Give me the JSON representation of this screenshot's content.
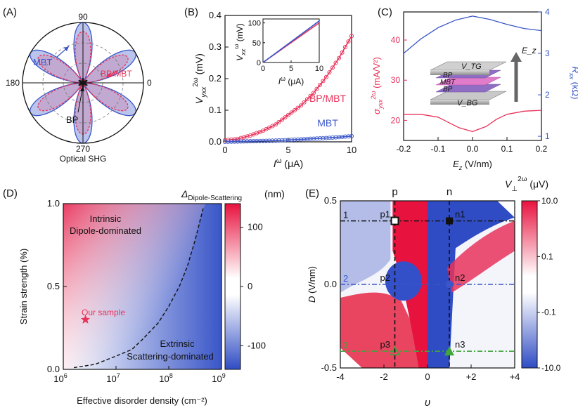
{
  "panel_labels": [
    "(A)",
    "(B)",
    "(C)",
    "(D)",
    "(E)"
  ],
  "colors": {
    "red": "#e8325a",
    "blue": "#3a56c8",
    "green": "#3fa63a",
    "dark": "#1a1a1a"
  },
  "chart_data": [
    {
      "panel": "A",
      "type": "polar",
      "title": "Optical SHG",
      "angle_labels": [
        "90",
        "0",
        "270",
        "180"
      ],
      "series": [
        {
          "name": "MBT",
          "color": "#3a56c8",
          "petals_deg": [
            30,
            90,
            150,
            210,
            270,
            330
          ],
          "relative_amplitude": 1.0
        },
        {
          "name": "BP/MBT",
          "color": "#e8325a",
          "petals_deg": [
            30,
            90,
            150,
            210,
            270,
            330
          ],
          "relative_amplitude": 0.85
        },
        {
          "name": "BP",
          "color": "#1a1a1a",
          "petals_deg": [
            30,
            90,
            150,
            210,
            270,
            330
          ],
          "relative_amplitude": 0.08
        }
      ]
    },
    {
      "panel": "B",
      "type": "line",
      "xlabel": "I^ω (μA)",
      "ylabel": "V_yxx^2ω (mV)",
      "xlim": [
        0,
        10
      ],
      "ylim": [
        0,
        0.4
      ],
      "xticks": [
        "0",
        "5",
        "10"
      ],
      "yticks": [
        "0.0",
        "0.1",
        "0.2",
        "0.3",
        "0.4"
      ],
      "series": [
        {
          "name": "BP/MBT",
          "color": "#e8325a",
          "x": [
            0,
            1,
            2,
            3,
            4,
            5,
            6,
            7,
            8,
            9,
            10
          ],
          "y": [
            0.005,
            0.009,
            0.02,
            0.035,
            0.055,
            0.085,
            0.115,
            0.155,
            0.205,
            0.265,
            0.335
          ]
        },
        {
          "name": "MBT",
          "color": "#3a56c8",
          "x": [
            0,
            1,
            2,
            3,
            4,
            5,
            6,
            7,
            8,
            9,
            10
          ],
          "y": [
            0.0,
            0.001,
            0.002,
            0.003,
            0.004,
            0.006,
            0.008,
            0.01,
            0.012,
            0.015,
            0.018
          ]
        }
      ],
      "inset": {
        "xlabel": "I^ω (μA)",
        "ylabel": "V_xx^ω (mV)",
        "xlim": [
          0,
          10
        ],
        "ylim": [
          0,
          110
        ],
        "xticks": [
          "0",
          "5",
          "10"
        ],
        "yticks": [
          "0",
          "50",
          "100"
        ],
        "series": [
          {
            "name": "BP/MBT",
            "color": "#e8325a",
            "x": [
              0,
              10
            ],
            "y": [
              0,
              100
            ]
          },
          {
            "name": "MBT",
            "color": "#3a56c8",
            "x": [
              0,
              10
            ],
            "y": [
              0,
              105
            ]
          }
        ]
      }
    },
    {
      "panel": "C",
      "type": "line",
      "xlabel": "E_z (V/nm)",
      "ylabel_left": "σ_yxx^2ω (mA/V²)",
      "ylabel_right": "R_xx (kΩ)",
      "xlim": [
        -0.2,
        0.2
      ],
      "ylim_left": [
        15,
        47
      ],
      "ylim_right": [
        0.9,
        4
      ],
      "xticks": [
        "-0.2",
        "-0.1",
        "0.0",
        "0.1",
        "0.2"
      ],
      "yticks_left": [
        "20",
        "30",
        "40"
      ],
      "yticks_right": [
        "1",
        "2",
        "3",
        "4"
      ],
      "series": [
        {
          "name": "σ",
          "axis": "left",
          "color": "#e8325a",
          "x": [
            -0.2,
            -0.15,
            -0.1,
            -0.07,
            -0.04,
            0.0,
            0.04,
            0.07,
            0.1,
            0.15,
            0.2
          ],
          "y": [
            21.5,
            21.5,
            20.8,
            19.5,
            18.2,
            17.2,
            18.5,
            20.3,
            21.5,
            22.3,
            22.5
          ]
        },
        {
          "name": "R_xx",
          "axis": "right",
          "color": "#3a56c8",
          "x": [
            -0.2,
            -0.15,
            -0.1,
            -0.05,
            0.0,
            0.05,
            0.1,
            0.15,
            0.2
          ],
          "y": [
            3.0,
            3.35,
            3.62,
            3.8,
            3.9,
            3.82,
            3.7,
            3.6,
            3.55
          ]
        }
      ],
      "inset_labels": [
        "V_TG",
        "BP",
        "MBT",
        "BP",
        "V_BG",
        "E_z"
      ]
    },
    {
      "panel": "D",
      "type": "heatmap",
      "xlabel": "Effective disorder density (cm⁻²)",
      "ylabel": "Strain strength (%)",
      "xscale": "log",
      "xlim_exp": [
        6,
        9
      ],
      "ylim": [
        0,
        1.0
      ],
      "xticks": [
        "10",
        "10",
        "10",
        "10"
      ],
      "xtick_exponents": [
        "6",
        "7",
        "8",
        "9"
      ],
      "yticks": [
        "0.0",
        "0.5",
        "1.0"
      ],
      "colorbar": {
        "title": "Δ",
        "title_sub": "Dipole-Scattering",
        "unit": "(nm)",
        "ticks": [
          "100",
          "0",
          "-100"
        ],
        "range": [
          -140,
          140
        ]
      },
      "boundary": {
        "log_x": [
          6.2,
          6.6,
          7.0,
          7.3,
          7.5,
          7.8,
          8.0,
          8.2,
          8.35,
          8.5,
          8.65
        ],
        "y": [
          0.01,
          0.03,
          0.08,
          0.12,
          0.18,
          0.28,
          0.38,
          0.5,
          0.62,
          0.78,
          0.97
        ]
      },
      "annotations": [
        "Intrinsic",
        "Dipole-dominated",
        "Extrinsic",
        "Scattering-dominated",
        "Our sample"
      ],
      "our_sample": {
        "log_x": 6.42,
        "y": 0.3
      }
    },
    {
      "panel": "E",
      "type": "heatmap",
      "xlabel": "υ",
      "ylabel": "D (V/nm)",
      "xlim": [
        -4,
        4
      ],
      "ylim": [
        -0.5,
        0.5
      ],
      "xticks": [
        "-4",
        "-2",
        "0",
        "+2",
        "+4"
      ],
      "yticks": [
        "0.5",
        "0.0",
        "-0.5"
      ],
      "colorbar": {
        "title": "V",
        "title_sub": "⊥",
        "title_sup": "2ω",
        "unit": "(μV)",
        "ticks": [
          "10.0",
          "0.1",
          "-0.1",
          "-10.0"
        ]
      },
      "top_labels": [
        "p",
        "n"
      ],
      "cuts": [
        {
          "label": "1",
          "D": 0.38,
          "color": "#1a1a1a"
        },
        {
          "label": "2",
          "D": 0.0,
          "color": "#3a56c8"
        },
        {
          "label": "3",
          "D": -0.4,
          "color": "#3fa63a"
        }
      ],
      "vertical_cuts": [
        {
          "label": "p",
          "v": -1.5
        },
        {
          "label": "n",
          "v": 1.0
        }
      ],
      "points": [
        {
          "label": "p1",
          "v": -1.5,
          "D": 0.38,
          "marker": "open-square"
        },
        {
          "label": "n1",
          "v": 1.0,
          "D": 0.38,
          "marker": "filled-square"
        },
        {
          "label": "p2",
          "v": -1.5,
          "D": 0.0,
          "marker": "none"
        },
        {
          "label": "n2",
          "v": 1.0,
          "D": 0.0,
          "marker": "filled-circle"
        },
        {
          "label": "p3",
          "v": -1.5,
          "D": -0.4,
          "marker": "open-triangle"
        },
        {
          "label": "n3",
          "v": 1.0,
          "D": -0.4,
          "marker": "filled-triangle"
        }
      ]
    }
  ]
}
